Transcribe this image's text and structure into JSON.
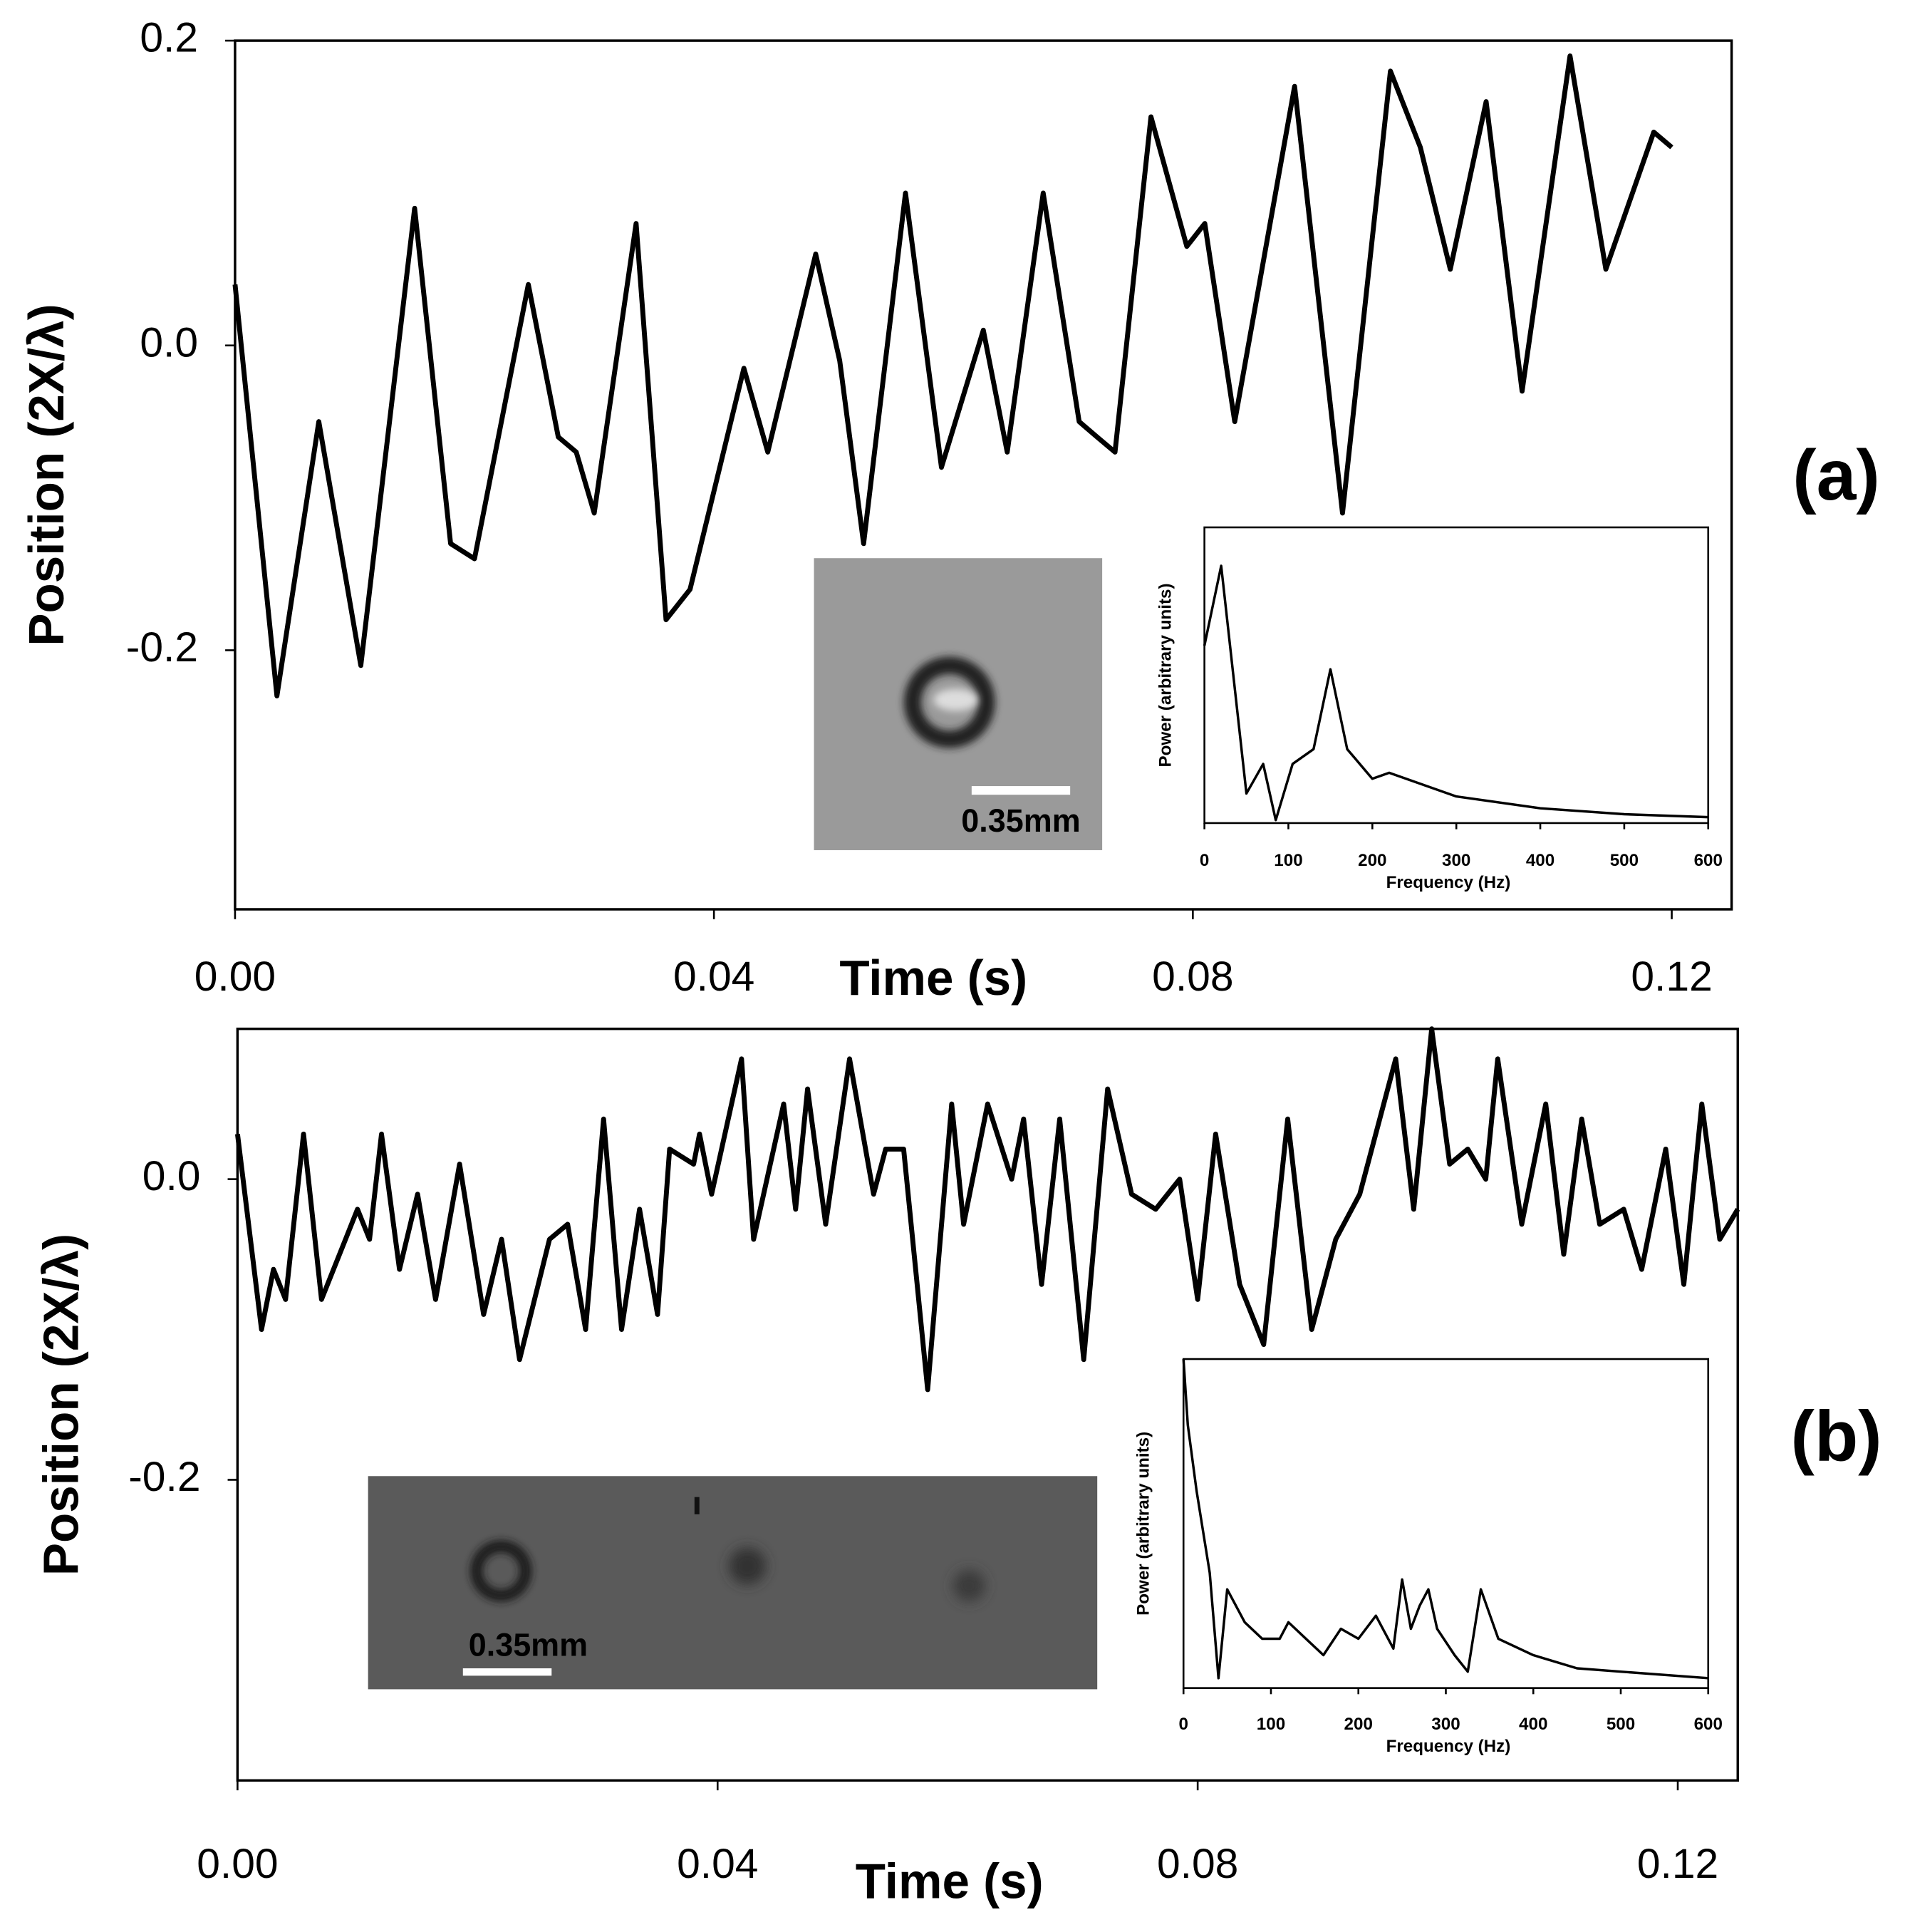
{
  "chart_data": [
    {
      "type": "line",
      "xlabel": "Time (s)",
      "ylabel": "Position (2X/λ)",
      "panel_label": "(a)",
      "scale_bar_label": "0.35mm",
      "color": "#000000",
      "x": [
        0,
        0.0035,
        0.007,
        0.0105,
        0.015,
        0.018,
        0.02,
        0.0245,
        0.027,
        0.0285,
        0.03,
        0.0335,
        0.036,
        0.038,
        0.0425,
        0.0445,
        0.0485,
        0.0505,
        0.0525,
        0.056,
        0.059,
        0.0625,
        0.0645,
        0.0675,
        0.0705,
        0.072,
        0.0735,
        0.0765,
        0.0795,
        0.081,
        0.0835,
        0.0885,
        0.0925,
        0.0965,
        0.099,
        0.1015,
        0.1045,
        0.1075,
        0.1115,
        0.1145,
        0.1185,
        0.12
      ],
      "values": [
        0.04,
        -0.23,
        -0.05,
        -0.21,
        0.09,
        -0.13,
        -0.14,
        0.04,
        -0.06,
        -0.07,
        -0.11,
        0.08,
        -0.18,
        -0.16,
        -0.015,
        -0.07,
        0.06,
        -0.01,
        -0.13,
        0.1,
        -0.08,
        0.01,
        -0.07,
        0.1,
        -0.05,
        -0.06,
        -0.07,
        0.15,
        0.065,
        0.08,
        -0.05,
        0.17,
        -0.11,
        0.18,
        0.13,
        0.05,
        0.16,
        -0.03,
        0.19,
        0.05,
        0.14,
        0.13
      ],
      "xlim": [
        0,
        0.125
      ],
      "ylim": [
        -0.37,
        0.2
      ],
      "xticks": [
        {
          "value": 0,
          "label": "0.00"
        },
        0.04,
        0.08,
        0.12
      ],
      "yticks": [
        -0.2,
        {
          "value": 0,
          "label": "0.0"
        },
        0.2
      ]
    },
    {
      "type": "line",
      "xlabel": "Frequency (Hz)",
      "ylabel": "Power (arbitrary units)",
      "color": "#000000",
      "x": [
        0,
        20,
        50,
        70,
        85,
        105,
        130,
        150,
        170,
        200,
        220,
        300,
        400,
        500,
        600
      ],
      "values": [
        0.6,
        0.87,
        0.1,
        0.2,
        0.01,
        0.2,
        0.25,
        0.52,
        0.25,
        0.15,
        0.17,
        0.09,
        0.05,
        0.03,
        0.02
      ],
      "xlim": [
        0,
        600
      ],
      "ylim": [
        0,
        1
      ],
      "xticks": [
        0,
        100,
        200,
        300,
        400,
        500,
        600
      ]
    },
    {
      "type": "line",
      "xlabel": "Time (s)",
      "ylabel": "Position (2X/λ)",
      "panel_label": "(b)",
      "scale_bar_label": "0.35mm",
      "color": "#000000",
      "x": [
        0,
        0.002,
        0.003,
        0.004,
        0.0055,
        0.007,
        0.009,
        0.01,
        0.011,
        0.012,
        0.0135,
        0.015,
        0.0165,
        0.0185,
        0.0205,
        0.022,
        0.0235,
        0.026,
        0.0275,
        0.029,
        0.0305,
        0.032,
        0.0335,
        0.035,
        0.036,
        0.038,
        0.0385,
        0.0395,
        0.042,
        0.043,
        0.0455,
        0.0465,
        0.0475,
        0.049,
        0.051,
        0.053,
        0.054,
        0.0555,
        0.0575,
        0.0595,
        0.0605,
        0.0625,
        0.0645,
        0.0655,
        0.067,
        0.0685,
        0.0705,
        0.0725,
        0.0745,
        0.0765,
        0.0785,
        0.08,
        0.0815,
        0.0835,
        0.0855,
        0.0875,
        0.0895,
        0.0915,
        0.0935,
        0.0965,
        0.098,
        0.0995,
        0.101,
        0.1025,
        0.104,
        0.105,
        0.107,
        0.109,
        0.1105,
        0.112,
        0.1135,
        0.1155,
        0.117,
        0.119,
        0.1205,
        0.122,
        0.1235,
        0.125
      ],
      "values": [
        0.03,
        -0.1,
        -0.06,
        -0.08,
        0.03,
        -0.08,
        -0.04,
        -0.02,
        -0.04,
        0.03,
        -0.06,
        -0.01,
        -0.08,
        0.01,
        -0.09,
        -0.04,
        -0.12,
        -0.04,
        -0.03,
        -0.1,
        0.04,
        -0.1,
        -0.02,
        -0.09,
        0.02,
        0.01,
        0.03,
        -0.01,
        0.08,
        -0.04,
        0.05,
        -0.02,
        0.06,
        -0.03,
        0.08,
        -0.01,
        0.02,
        0.02,
        -0.14,
        0.05,
        -0.03,
        0.05,
        0,
        0.04,
        -0.07,
        0.04,
        -0.12,
        0.06,
        -0.01,
        -0.02,
        0,
        -0.08,
        0.03,
        -0.07,
        -0.11,
        0.04,
        -0.1,
        -0.04,
        -0.01,
        0.08,
        -0.02,
        0.1,
        0.01,
        0.02,
        0,
        0.08,
        -0.03,
        0.05,
        -0.05,
        0.04,
        -0.03,
        -0.02,
        -0.06,
        0.02,
        -0.07,
        0.05,
        -0.04,
        -0.02
      ],
      "xlim": [
        0,
        0.125
      ],
      "ylim": [
        -0.4,
        0.1
      ],
      "xticks": [
        {
          "value": 0,
          "label": "0.00"
        },
        0.04,
        0.08,
        0.12
      ],
      "yticks": [
        -0.2,
        {
          "value": 0,
          "label": "0.0"
        }
      ]
    },
    {
      "type": "line",
      "xlabel": "Frequency (Hz)",
      "ylabel": "Power (arbitrary units)",
      "color": "#000000",
      "x": [
        0,
        5,
        15,
        30,
        40,
        50,
        70,
        90,
        110,
        120,
        140,
        160,
        180,
        200,
        220,
        240,
        250,
        260,
        270,
        280,
        290,
        310,
        325,
        340,
        360,
        400,
        450,
        500,
        600
      ],
      "values": [
        1.0,
        0.8,
        0.6,
        0.35,
        0.03,
        0.3,
        0.2,
        0.15,
        0.15,
        0.2,
        0.15,
        0.1,
        0.18,
        0.15,
        0.22,
        0.12,
        0.33,
        0.18,
        0.25,
        0.3,
        0.18,
        0.1,
        0.05,
        0.3,
        0.15,
        0.1,
        0.06,
        0.05,
        0.03
      ],
      "xlim": [
        0,
        600
      ],
      "ylim": [
        0,
        1
      ],
      "xticks": [
        0,
        100,
        200,
        300,
        400,
        500,
        600
      ]
    }
  ]
}
